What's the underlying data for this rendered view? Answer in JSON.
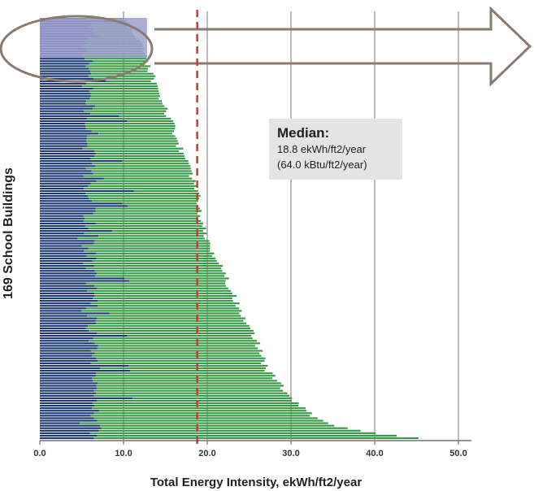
{
  "chart_data": {
    "type": "bar",
    "orientation": "horizontal",
    "title": "",
    "xlabel": "Total Energy Intensity, ekWh/ft2/year",
    "ylabel": "169 School Buildings",
    "xlim": [
      0,
      50
    ],
    "xticks": [
      0,
      10,
      20,
      30,
      40,
      50
    ],
    "xtick_labels": [
      "0.0",
      "10.0",
      "20.0",
      "30.0",
      "40.0",
      "50.0"
    ],
    "grid": true,
    "building_count": 169,
    "series_colors": {
      "component_a": "#1d3a72",
      "component_b": "#3a9a48"
    },
    "median": {
      "value": 18.8,
      "title": "Median:",
      "line1": "18.8 ekWh/ft2/year",
      "line2": "(64.0 kBtu/ft2/year)"
    },
    "highlight_region": {
      "x_range": [
        0,
        12.8
      ],
      "y_range_bars": [
        0,
        16
      ],
      "color": "#9fa0cf"
    },
    "totals_profile": [
      [
        0,
        10.0
      ],
      [
        5,
        11.0
      ],
      [
        10,
        12.0
      ],
      [
        16,
        12.8
      ],
      [
        25,
        13.6
      ],
      [
        40,
        15.5
      ],
      [
        50,
        16.5
      ],
      [
        60,
        17.8
      ],
      [
        70,
        18.8
      ],
      [
        80,
        19.2
      ],
      [
        90,
        20.2
      ],
      [
        100,
        21.7
      ],
      [
        110,
        23.0
      ],
      [
        120,
        24.5
      ],
      [
        130,
        26.0
      ],
      [
        140,
        27.0
      ],
      [
        150,
        29.5
      ],
      [
        155,
        31.0
      ],
      [
        160,
        33.0
      ],
      [
        163,
        35.0
      ],
      [
        165,
        38.0
      ],
      [
        167,
        43.0
      ],
      [
        168,
        45.0
      ]
    ],
    "blue_profile": [
      [
        0,
        5.8
      ],
      [
        80,
        5.9
      ],
      [
        130,
        6.3
      ],
      [
        168,
        6.8
      ]
    ]
  }
}
